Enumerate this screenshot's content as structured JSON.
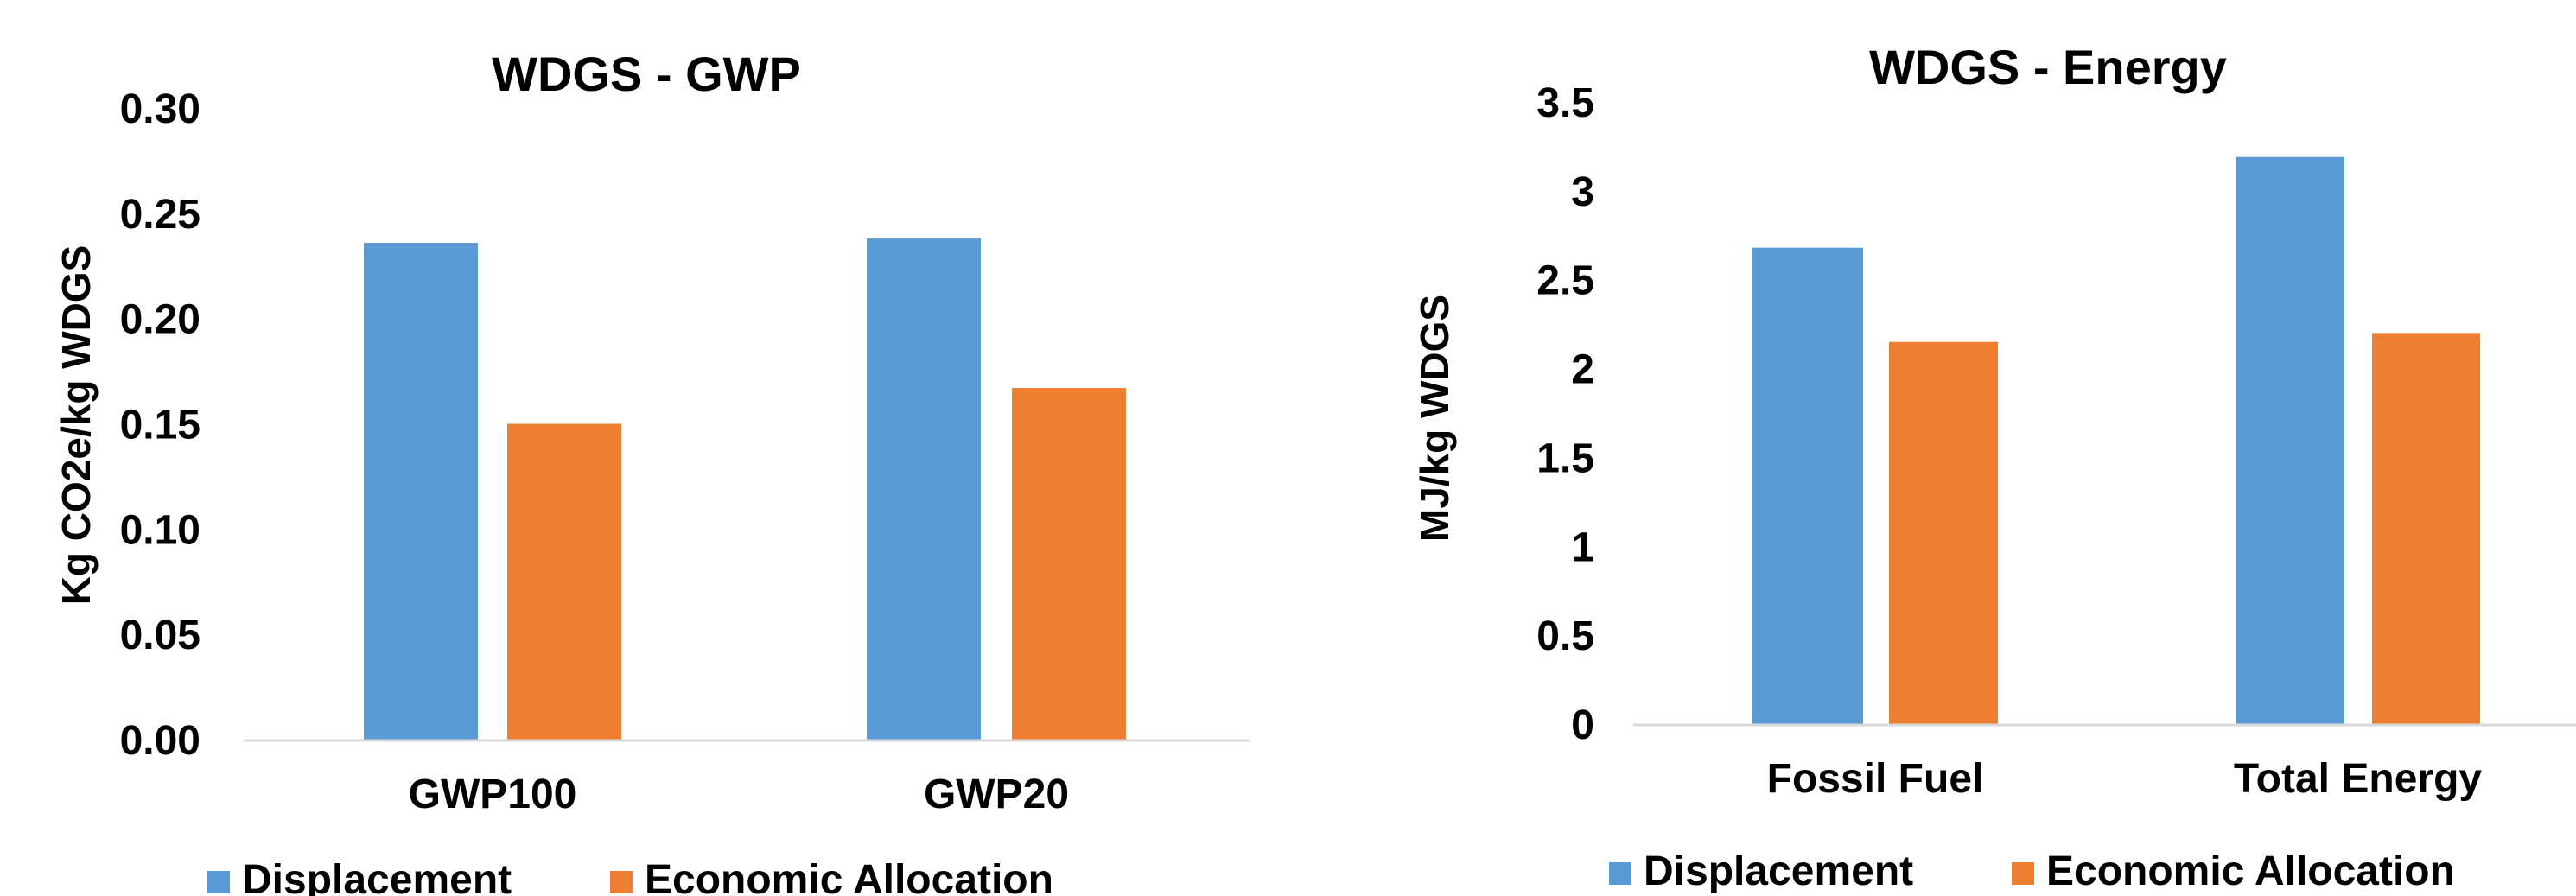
{
  "colors": {
    "displacement": "#5B9BD5",
    "economic_allocation": "#ED7D31",
    "axis_line": "#D9D9D9",
    "text": "#000000"
  },
  "chart_data": [
    {
      "type": "bar",
      "title": "WDGS - GWP",
      "xlabel": "",
      "ylabel": "Kg CO2e/kg WDGS",
      "ylim": [
        0,
        0.3
      ],
      "yticks": [
        "0.00",
        "0.05",
        "0.10",
        "0.15",
        "0.20",
        "0.25",
        "0.30"
      ],
      "categories": [
        "GWP100",
        "GWP20"
      ],
      "series": [
        {
          "name": "Displacement",
          "values": [
            0.236,
            0.238
          ]
        },
        {
          "name": "Economic Allocation",
          "values": [
            0.15,
            0.167
          ]
        }
      ],
      "grid": false,
      "legend": "bottom"
    },
    {
      "type": "bar",
      "title": "WDGS - Energy",
      "xlabel": "",
      "ylabel": "MJ/kg WDGS",
      "ylim": [
        0,
        3.5
      ],
      "yticks": [
        "0",
        "0.5",
        "1",
        "1.5",
        "2",
        "2.5",
        "3",
        "3.5"
      ],
      "categories": [
        "Fossil Fuel",
        "Total Energy"
      ],
      "series": [
        {
          "name": "Displacement",
          "values": [
            2.68,
            3.19
          ]
        },
        {
          "name": "Economic Allocation",
          "values": [
            2.15,
            2.2
          ]
        }
      ],
      "grid": false,
      "legend": "bottom"
    }
  ]
}
